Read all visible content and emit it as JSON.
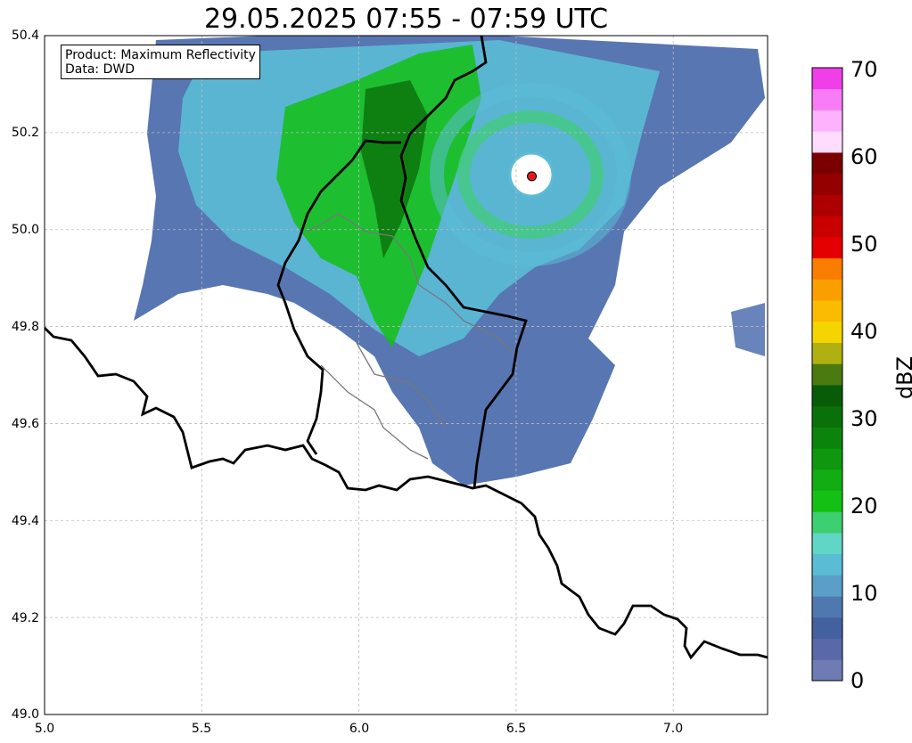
{
  "title": "29.05.2025 07:55 - 07:59 UTC",
  "info_box": {
    "product": "Product: Maximum Reflectivity",
    "data": "Data: DWD"
  },
  "map": {
    "lon_range": [
      5.0,
      7.3
    ],
    "lat_range": [
      49.0,
      50.4
    ],
    "x_ticks": [
      "5.0",
      "5.5",
      "6.0",
      "6.5",
      "7.0"
    ],
    "y_ticks": [
      "50.4",
      "50.2",
      "50.0",
      "49.8",
      "49.6",
      "49.4",
      "49.2",
      "49.0"
    ],
    "grid": true,
    "radar_site": {
      "lon": 6.55,
      "lat": 50.11,
      "marker_color": "#e31a1c"
    }
  },
  "colorbar": {
    "label": "dBZ",
    "range": [
      0,
      70
    ],
    "ticks": [
      "70",
      "60",
      "50",
      "40",
      "30",
      "20",
      "10",
      "0"
    ],
    "colors": [
      "#6e7cb3",
      "#5868a8",
      "#44619f",
      "#4f78b0",
      "#5b9ec8",
      "#5bbcd6",
      "#5fd6c6",
      "#3ecf72",
      "#14c014",
      "#12ad12",
      "#0f980f",
      "#0c840c",
      "#0a700a",
      "#085c08",
      "#4a7a10",
      "#b0b010",
      "#f5d500",
      "#fbbb00",
      "#fb9f00",
      "#fb7d00",
      "#e40000",
      "#c80000",
      "#ad0000",
      "#940000",
      "#7a0000",
      "#fedcfe",
      "#fcb2fc",
      "#f97cf7",
      "#f03ee9"
    ]
  }
}
